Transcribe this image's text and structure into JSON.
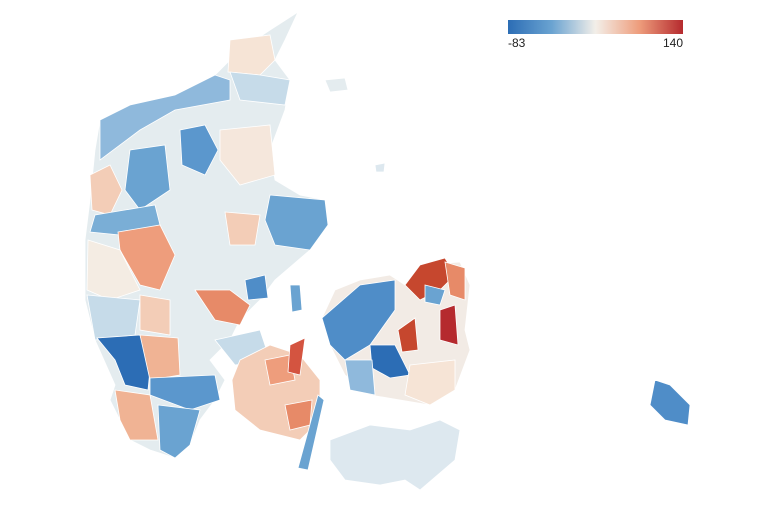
{
  "legend": {
    "min": "-83",
    "max": "140",
    "colors": [
      "#2c6db5",
      "#6aa3d1",
      "#f3efe9",
      "#ee9d7c",
      "#b52a2e"
    ]
  }
}
